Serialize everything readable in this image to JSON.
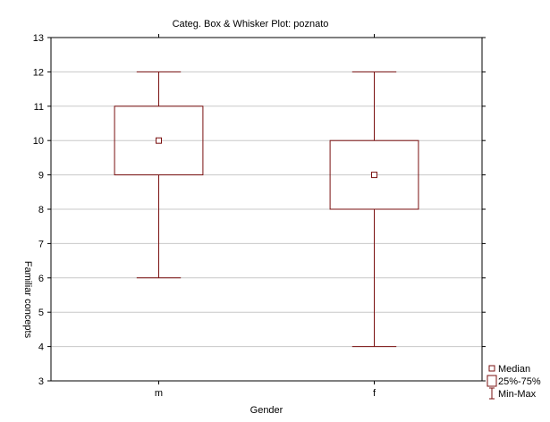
{
  "chart_data": {
    "type": "boxplot",
    "title": "Categ. Box & Whisker Plot:  poznato",
    "xlabel": "Gender",
    "ylabel": "Familiar concepts",
    "ylim": [
      3,
      13
    ],
    "yticks": [
      3,
      4,
      5,
      6,
      7,
      8,
      9,
      10,
      11,
      12,
      13
    ],
    "grid": true,
    "legend_position": "bottom-right",
    "categories": [
      "m",
      "f"
    ],
    "boxes": [
      {
        "category": "m",
        "min": 6,
        "q1": 9,
        "median": 10,
        "q3": 11,
        "max": 12
      },
      {
        "category": "f",
        "min": 4,
        "q1": 8,
        "median": 9,
        "q3": 10,
        "max": 12
      }
    ],
    "legend": [
      {
        "symbol": "median-marker",
        "label": "Median"
      },
      {
        "symbol": "box",
        "label": "25%-75%"
      },
      {
        "symbol": "whisker",
        "label": "Min-Max"
      }
    ],
    "colors": {
      "box_stroke": "#7a1010",
      "axis": "#000000",
      "grid": "#c8c8c8"
    }
  }
}
